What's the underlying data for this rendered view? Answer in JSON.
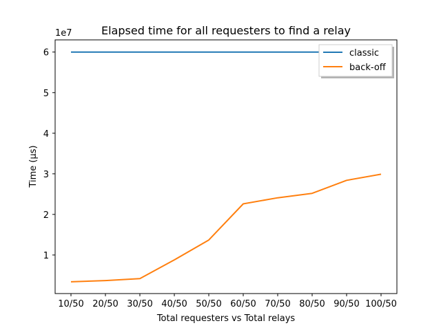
{
  "chart_data": {
    "type": "line",
    "title": "Elapsed time for all requesters to find a relay",
    "xlabel": "Total requesters vs Total relays",
    "ylabel": "Time (µs)",
    "y_offset_label": "1e7",
    "categories": [
      "10/50",
      "20/50",
      "30/50",
      "40/50",
      "50/50",
      "60/50",
      "70/50",
      "80/50",
      "90/50",
      "100/50"
    ],
    "y_ticks": [
      1,
      2,
      3,
      4,
      5,
      6
    ],
    "ylim": [
      0.05,
      6.3
    ],
    "grid": false,
    "legend_position": "top-right",
    "series": [
      {
        "name": "classic",
        "color": "#1f77b4",
        "values": [
          6.0,
          6.0,
          6.0,
          6.0,
          6.0,
          6.0,
          6.0,
          6.0,
          6.0,
          6.0
        ]
      },
      {
        "name": "back-off",
        "color": "#ff7f0e",
        "values": [
          0.34,
          0.37,
          0.42,
          0.88,
          1.37,
          2.26,
          2.41,
          2.52,
          2.84,
          2.99
        ]
      }
    ]
  }
}
